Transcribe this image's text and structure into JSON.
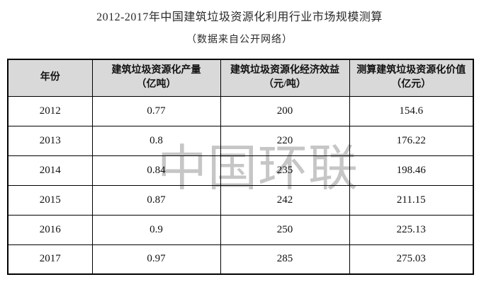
{
  "watermark": {
    "text": "中国环联",
    "color": "#c6c6c6"
  },
  "colors": {
    "header_bg": "#d9d9d9",
    "border": "#000000",
    "text": "#1c1c1c"
  },
  "chart_data": {
    "type": "table",
    "title": "2012-2017年中国建筑垃圾资源化利用行业市场规模测算",
    "subtitle": "（数据来自公开网络）",
    "columns": [
      {
        "label": "年份",
        "unit": ""
      },
      {
        "label": "建筑垃圾资源化产量",
        "unit": "（亿吨）"
      },
      {
        "label": "建筑垃圾资源化经济效益",
        "unit": "（元/吨）"
      },
      {
        "label": "测算建筑垃圾资源化价值",
        "unit": "（亿元）"
      }
    ],
    "rows": [
      [
        "2012",
        "0.77",
        "200",
        "154.6"
      ],
      [
        "2013",
        "0.8",
        "220",
        "176.22"
      ],
      [
        "2014",
        "0.84",
        "235",
        "198.46"
      ],
      [
        "2015",
        "0.87",
        "242",
        "211.15"
      ],
      [
        "2016",
        "0.9",
        "250",
        "225.13"
      ],
      [
        "2017",
        "0.97",
        "285",
        "275.03"
      ]
    ],
    "layout": {
      "legend": "none",
      "grid": "full-borders",
      "header_position": "top"
    }
  }
}
